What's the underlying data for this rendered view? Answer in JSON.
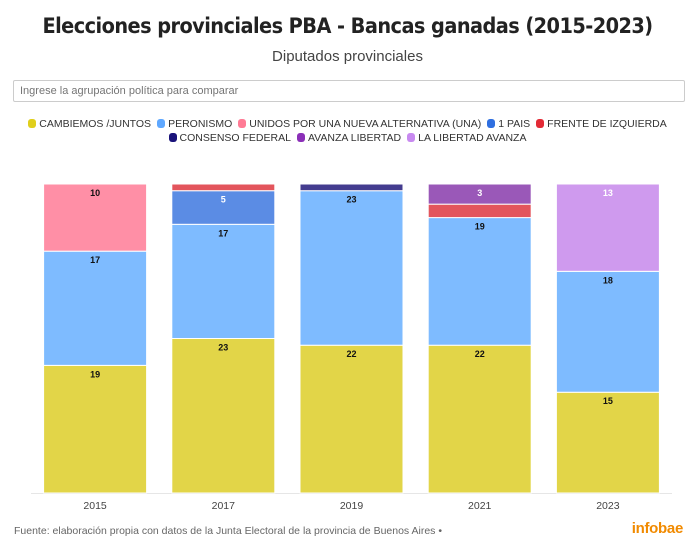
{
  "header": {
    "title": "Elecciones provinciales PBA - Bancas ganadas (2015-2023)",
    "subtitle": "Diputados provinciales"
  },
  "search": {
    "placeholder": "Ingrese la agrupación política para comparar"
  },
  "footer": {
    "source": "Fuente: elaboración propia con datos de la Junta Electoral de la provincia de Buenos Aires •",
    "brand": "infobae",
    "brand_color": "#f18a00"
  },
  "chart_data": {
    "type": "bar",
    "stacked": true,
    "title": "Elecciones provinciales PBA - Bancas ganadas (2015-2023)",
    "subtitle": "Diputados provinciales",
    "xlabel": "",
    "ylabel": "",
    "ylim": [
      0,
      46
    ],
    "grid": false,
    "legend_position": "top",
    "categories": [
      "2015",
      "2017",
      "2019",
      "2021",
      "2023"
    ],
    "series": [
      {
        "name": "CAMBIEMOS /JUNTOS",
        "color": "#e2d548",
        "values": [
          19,
          23,
          22,
          22,
          15
        ],
        "show_labels": true
      },
      {
        "name": "PERONISMO",
        "color": "#7ebbff",
        "values": [
          17,
          17,
          23,
          19,
          18
        ],
        "show_labels": true
      },
      {
        "name": "UNIDOS POR UNA NUEVA ALTERNATIVA (UNA)",
        "color": "#ff8fa6",
        "values": [
          10,
          0,
          0,
          0,
          0
        ],
        "show_labels": true
      },
      {
        "name": "1 PAIS",
        "color": "#5b8ce4",
        "values": [
          0,
          5,
          0,
          0,
          0
        ],
        "show_labels": true
      },
      {
        "name": "FRENTE DE IZQUIERDA",
        "color": "#e3555c",
        "values": [
          0,
          1,
          0,
          2,
          0
        ],
        "show_labels": false
      },
      {
        "name": "CONSENSO FEDERAL",
        "color": "#443c8f",
        "values": [
          0,
          0,
          1,
          0,
          0
        ],
        "show_labels": false
      },
      {
        "name": "AVANZA LIBERTAD",
        "color": "#9a58b8",
        "values": [
          0,
          0,
          0,
          3,
          0
        ],
        "show_labels": true
      },
      {
        "name": "LA LIBERTAD AVANZA",
        "color": "#cf9aee",
        "values": [
          0,
          0,
          0,
          0,
          13
        ],
        "show_labels": true
      }
    ],
    "legend_swatch_colors": [
      "#e0cf1c",
      "#5fa8ff",
      "#ff7b95",
      "#2f6fe0",
      "#e32b36",
      "#1a137a",
      "#8b2fb8",
      "#c88af0"
    ]
  }
}
